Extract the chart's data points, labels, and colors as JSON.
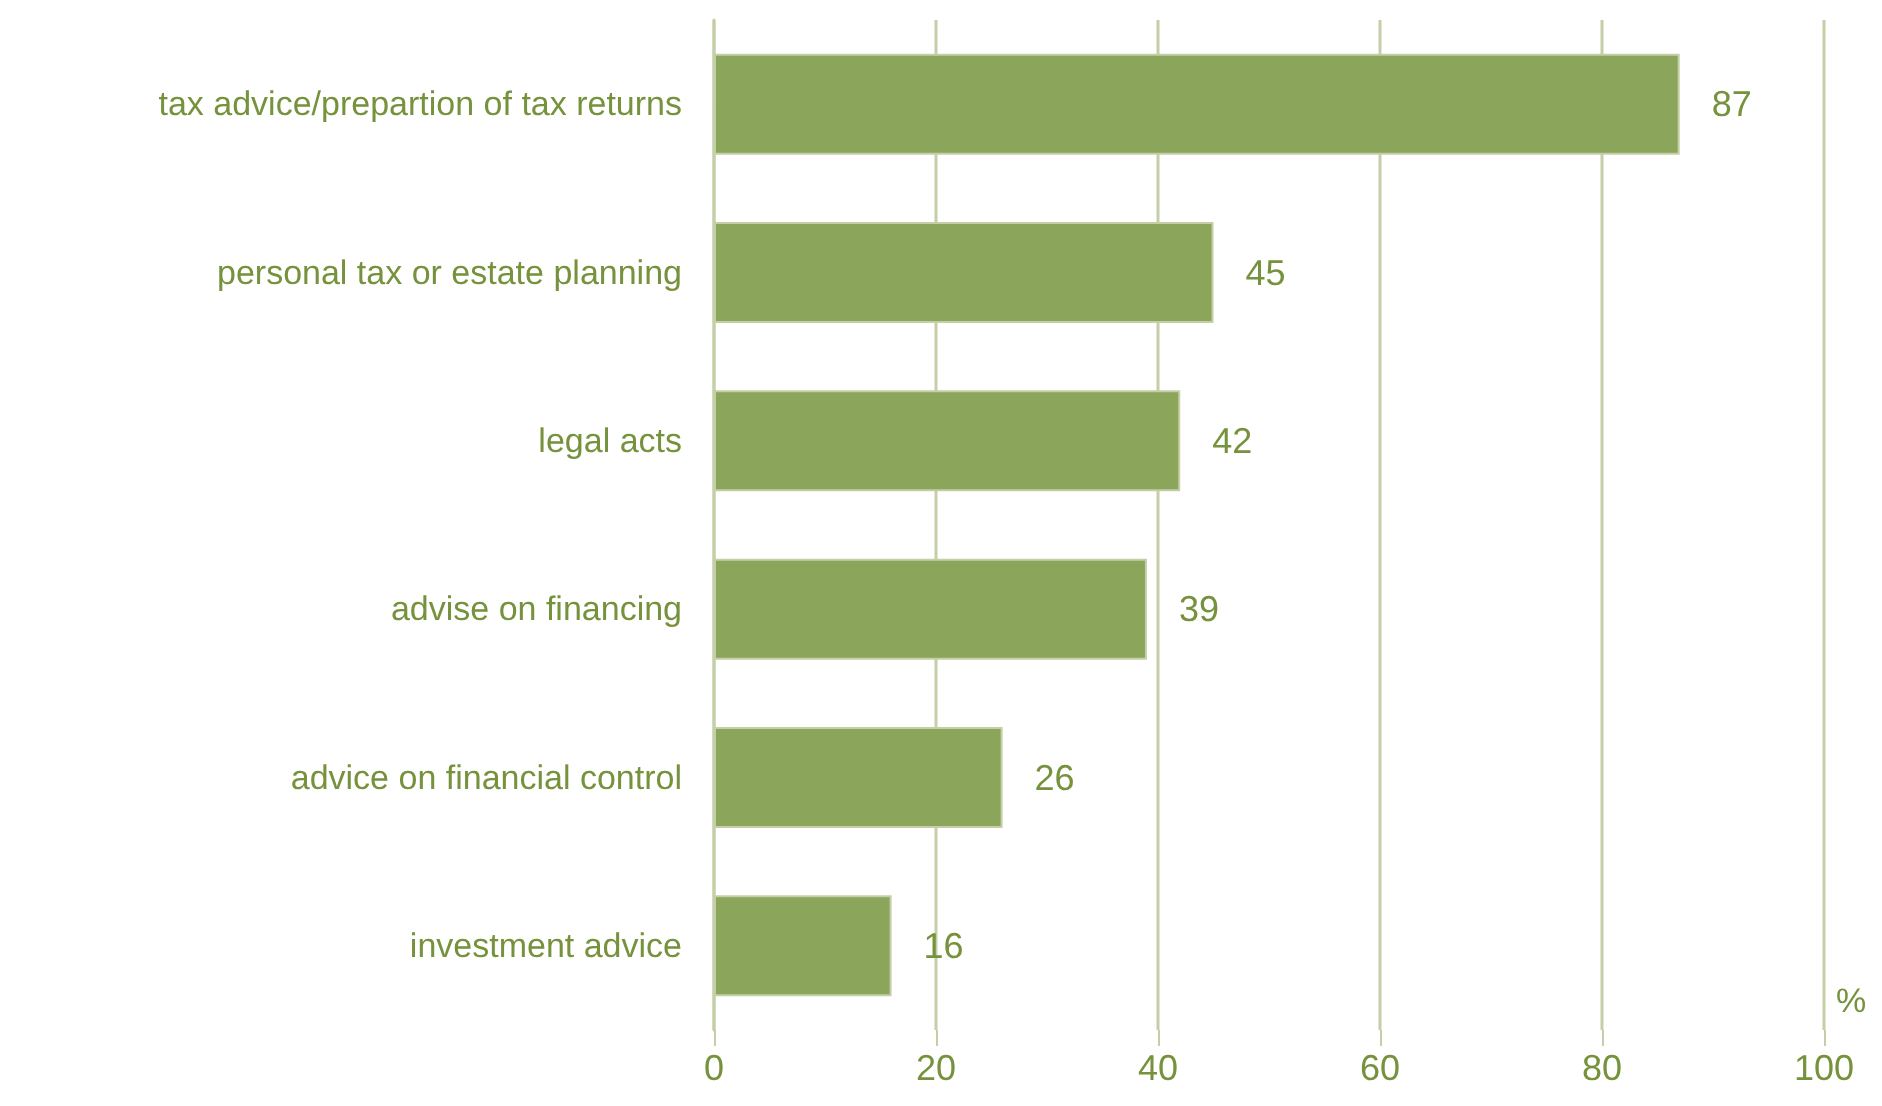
{
  "chart_data": {
    "type": "bar",
    "orientation": "horizontal",
    "categories": [
      "tax advice/prepartion of tax returns",
      "personal tax or estate planning",
      "legal acts",
      "advise on financing",
      "advice on financial control",
      "investment advice"
    ],
    "values": [
      87,
      45,
      42,
      39,
      26,
      16
    ],
    "color": "#8ba55b",
    "xlabel": "%",
    "xlim": [
      0,
      100
    ],
    "xticks": [
      0,
      20,
      40,
      60,
      80,
      100
    ],
    "grid": "x",
    "data_labels": true
  }
}
